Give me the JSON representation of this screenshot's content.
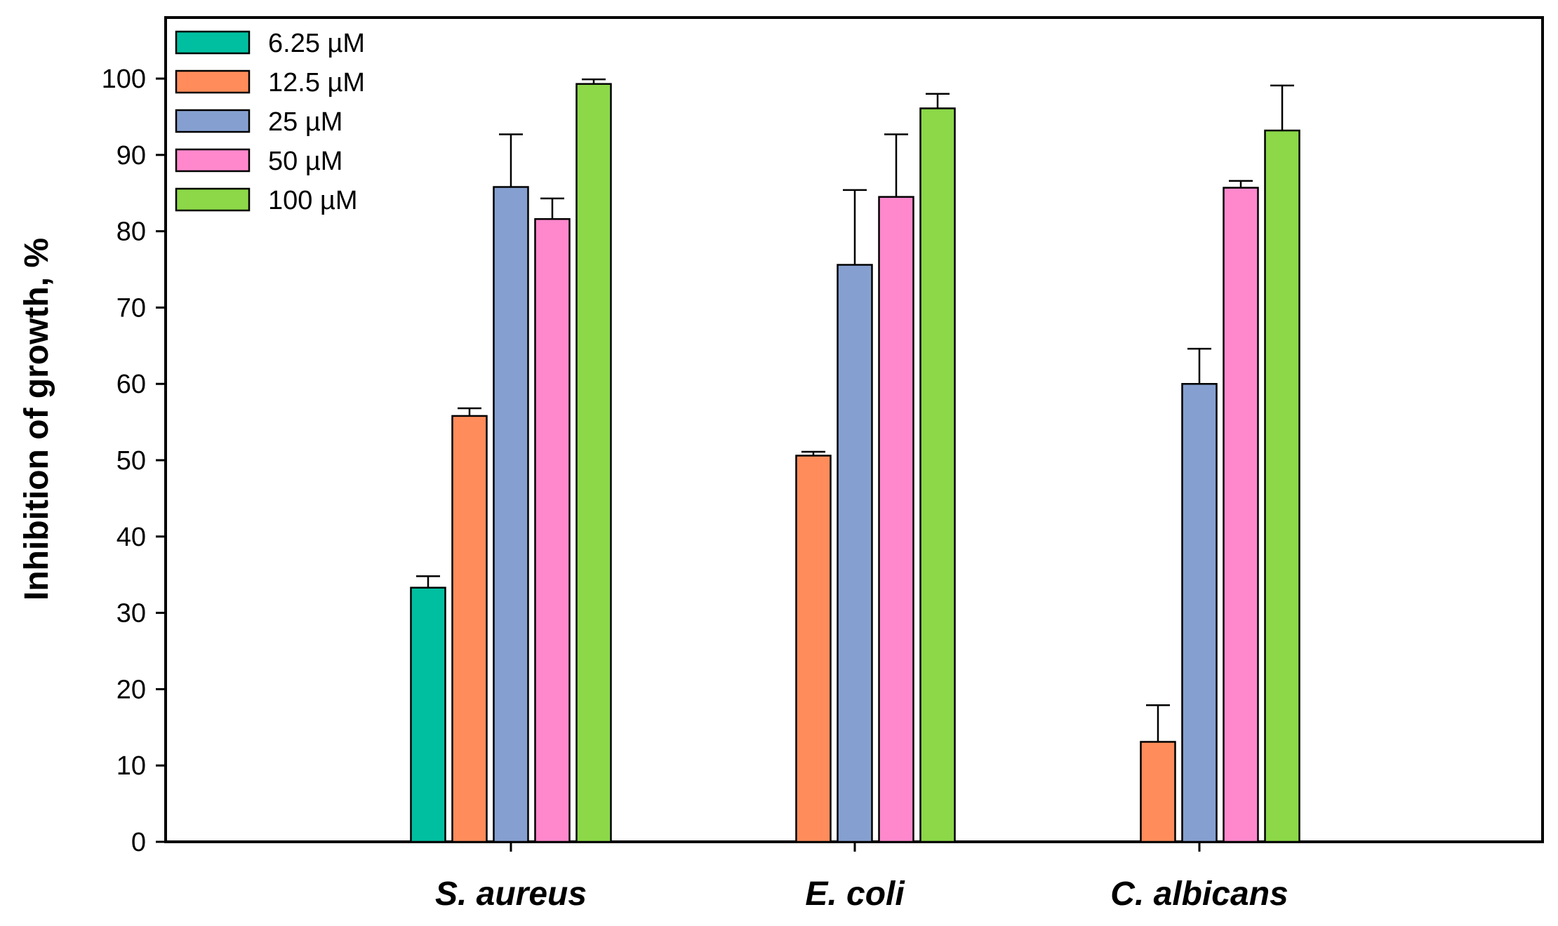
{
  "chart_data": {
    "type": "bar",
    "title": "",
    "xlabel": "",
    "ylabel": "Inhibition of growth, %",
    "ylim": [
      0,
      108
    ],
    "yticks": [
      0,
      10,
      20,
      30,
      40,
      50,
      60,
      70,
      80,
      90,
      100
    ],
    "categories": [
      "S. aureus",
      "E. coli",
      "C. albicans"
    ],
    "legend_position": "top-left",
    "series": [
      {
        "name": "6.25 µM",
        "color": "#00BFA0",
        "values": [
          33.3,
          null,
          null
        ],
        "errors": [
          1.5,
          null,
          null
        ]
      },
      {
        "name": "12.5 µM",
        "color": "#FF8C5A",
        "values": [
          55.8,
          50.6,
          13.1
        ],
        "errors": [
          1.0,
          0.5,
          4.8
        ]
      },
      {
        "name": "25 µM",
        "color": "#85A0D0",
        "values": [
          85.8,
          75.6,
          60.0
        ],
        "errors": [
          6.9,
          9.8,
          4.6
        ]
      },
      {
        "name": "50 µM",
        "color": "#FF88CC",
        "values": [
          81.6,
          84.5,
          85.7
        ],
        "errors": [
          2.7,
          8.2,
          0.9
        ]
      },
      {
        "name": "100 µM",
        "color": "#8CD848",
        "values": [
          99.3,
          96.1,
          93.2
        ],
        "errors": [
          0.6,
          1.9,
          5.9
        ]
      }
    ]
  }
}
